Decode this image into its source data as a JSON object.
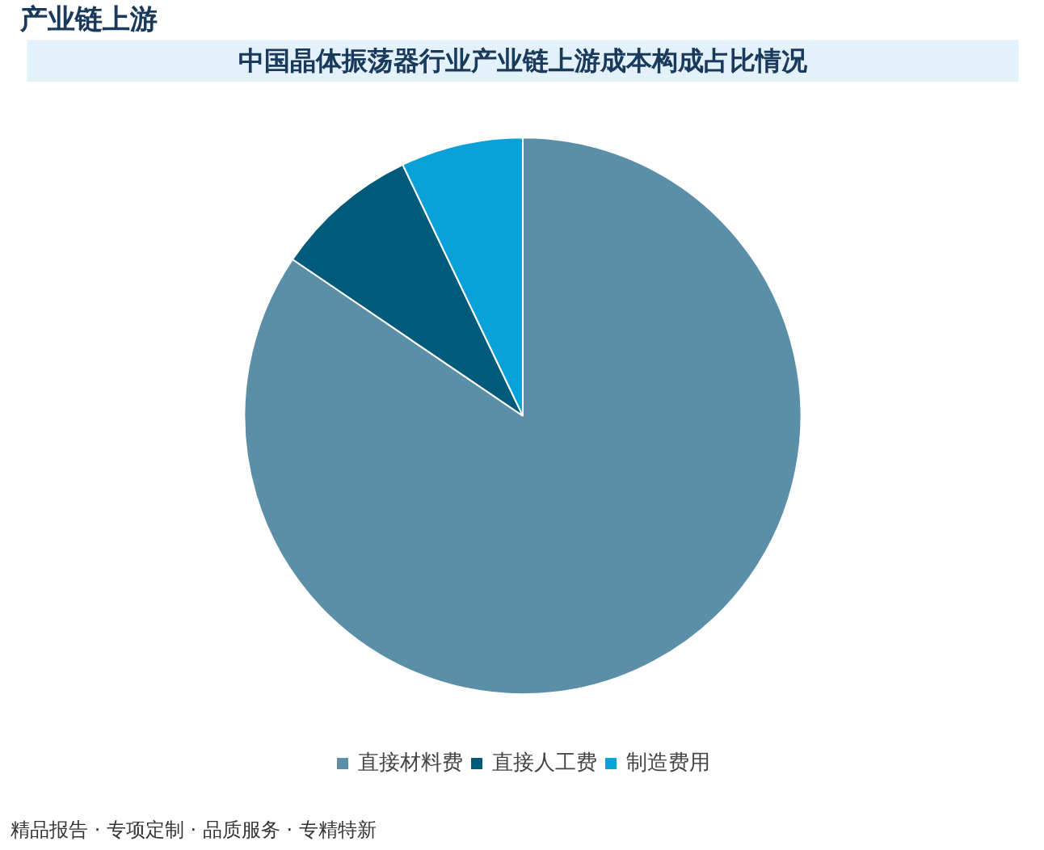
{
  "chart_data": {
    "type": "pie",
    "title": "中国晶体振荡器行业产业链上游成本构成占比情况",
    "categories": [
      "直接材料费",
      "直接人工费",
      "制造费用"
    ],
    "values": [
      84.5,
      8.4,
      7.1
    ],
    "colors": [
      "#5b8fa8",
      "#005a7a",
      "#0aa0d8"
    ],
    "legend": "bottom",
    "annotations": [
      "产业链上游",
      "精品报告 · 专项定制 · 品质服务 · 专精特新"
    ]
  }
}
